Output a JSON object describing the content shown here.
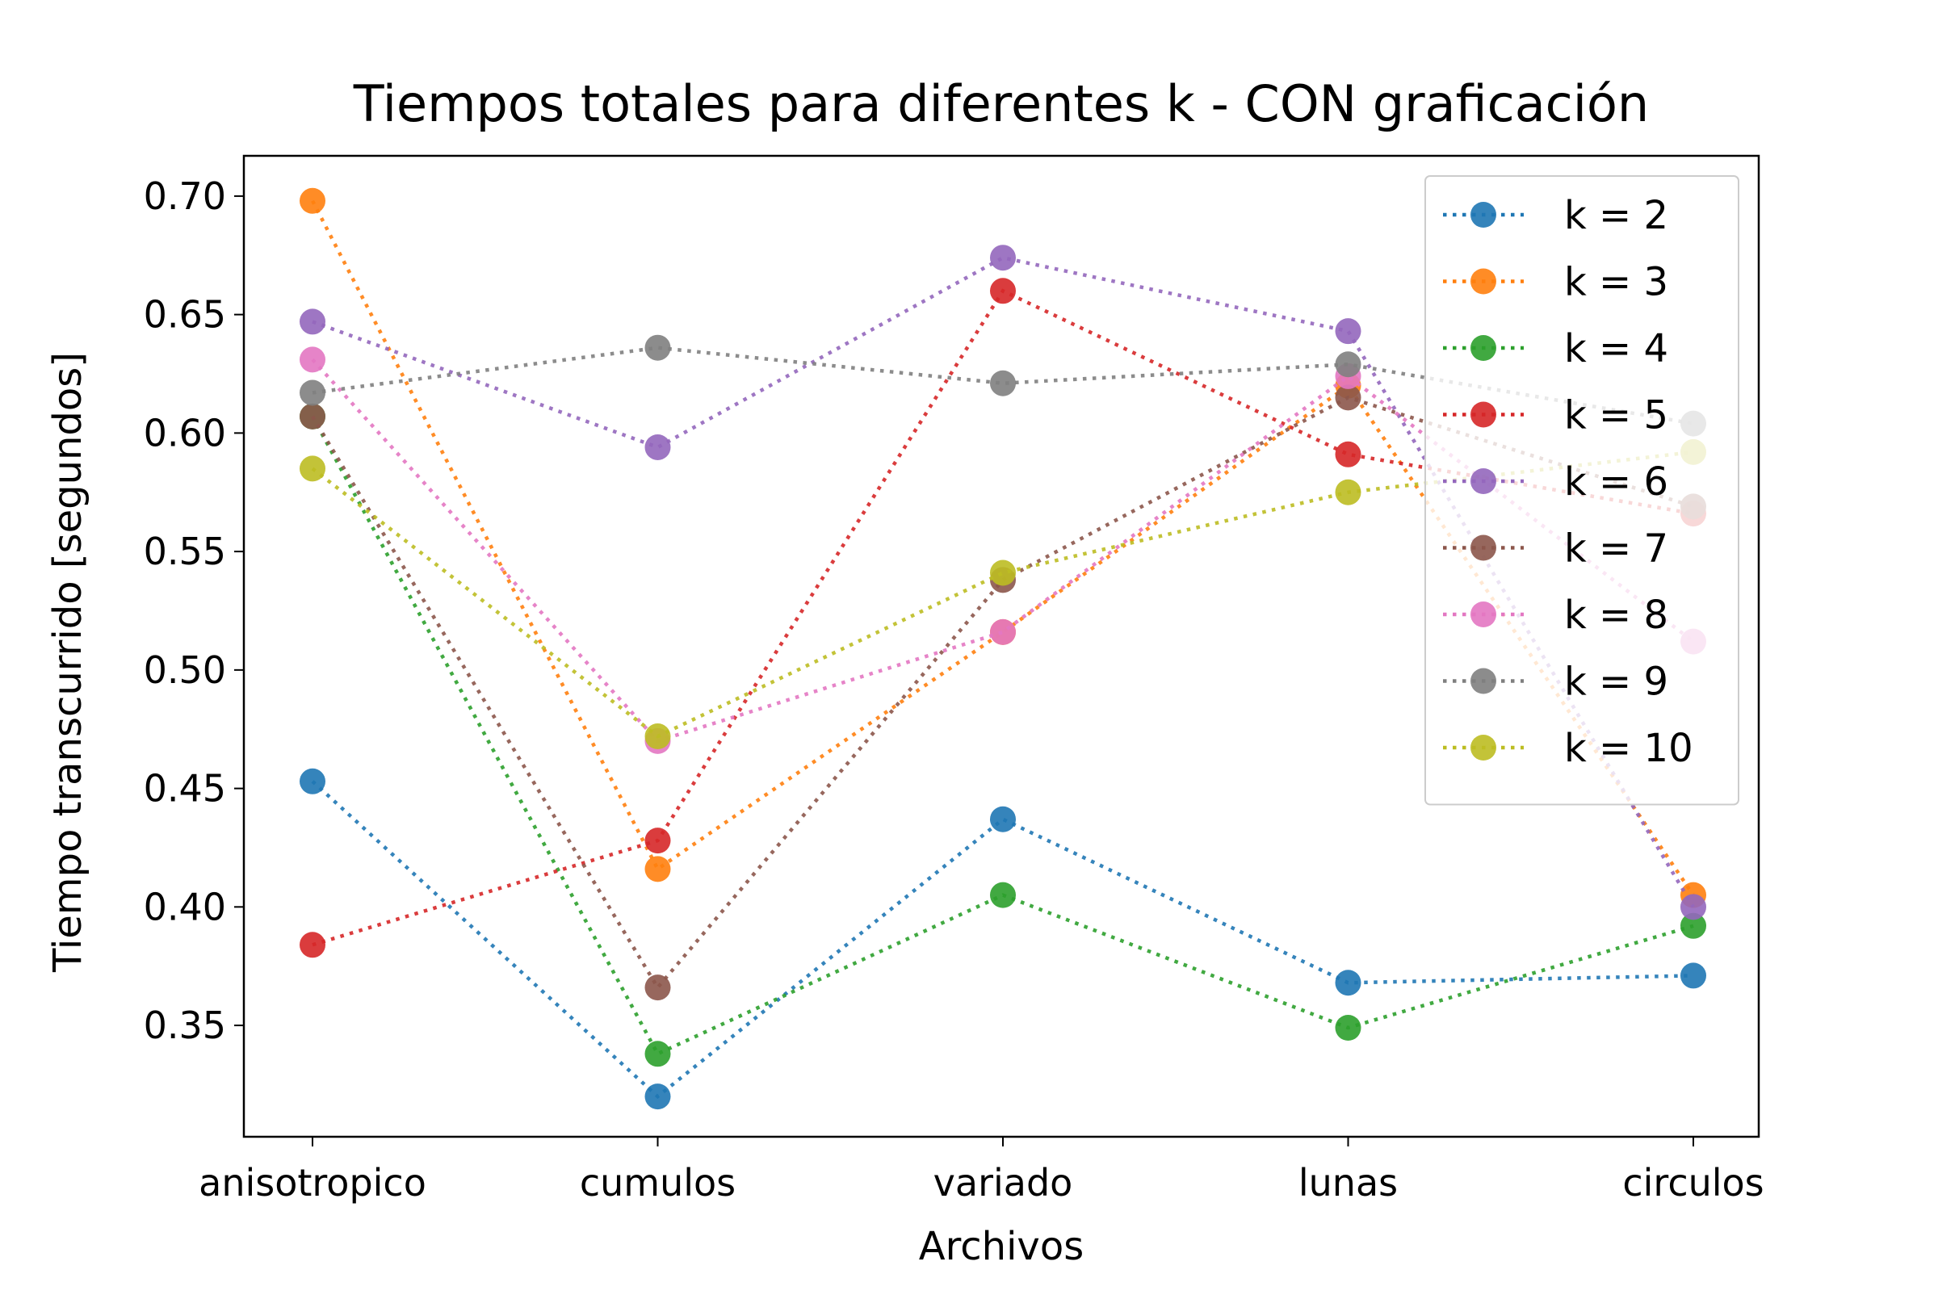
{
  "chart_data": {
    "type": "line",
    "title": "Tiempos totales para diferentes k - CON graficación",
    "xlabel": "Archivos",
    "ylabel": "Tiempo transcurrido [segundos]",
    "categories": [
      "anisotropico",
      "cumulos",
      "variado",
      "lunas",
      "circulos"
    ],
    "ylim": [
      0.303,
      0.717
    ],
    "yticks": [
      0.35,
      0.4,
      0.45,
      0.5,
      0.55,
      0.6,
      0.65,
      0.7
    ],
    "ytick_labels": [
      "0.35",
      "0.40",
      "0.45",
      "0.50",
      "0.55",
      "0.60",
      "0.65",
      "0.70"
    ],
    "grid": false,
    "legend_position": "top-right",
    "line_style": "dotted",
    "series": [
      {
        "name": "k = 2",
        "color": "#1f77b4",
        "values": [
          0.453,
          0.32,
          0.437,
          0.368,
          0.371
        ]
      },
      {
        "name": "k = 3",
        "color": "#ff7f0e",
        "values": [
          0.698,
          0.416,
          0.516,
          0.62,
          0.405
        ]
      },
      {
        "name": "k = 4",
        "color": "#2ca02c",
        "values": [
          0.607,
          0.338,
          0.405,
          0.349,
          0.392
        ]
      },
      {
        "name": "k = 5",
        "color": "#d62728",
        "values": [
          0.384,
          0.428,
          0.66,
          0.591,
          0.566
        ]
      },
      {
        "name": "k = 6",
        "color": "#9467bd",
        "values": [
          0.647,
          0.594,
          0.674,
          0.643,
          0.4
        ]
      },
      {
        "name": "k = 7",
        "color": "#8c564b",
        "values": [
          0.607,
          0.366,
          0.538,
          0.615,
          0.569
        ]
      },
      {
        "name": "k = 8",
        "color": "#e377c2",
        "values": [
          0.631,
          0.47,
          0.516,
          0.624,
          0.512
        ]
      },
      {
        "name": "k = 9",
        "color": "#7f7f7f",
        "values": [
          0.617,
          0.636,
          0.621,
          0.629,
          0.604
        ]
      },
      {
        "name": "k = 10",
        "color": "#bcbd22",
        "values": [
          0.585,
          0.472,
          0.541,
          0.575,
          0.592
        ]
      }
    ]
  }
}
